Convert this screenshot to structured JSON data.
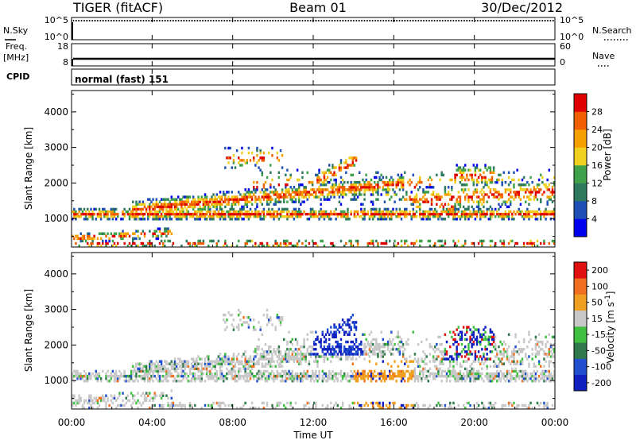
{
  "header": {
    "radar_title": "TIGER (fitACF)",
    "beam_title": "Beam 01",
    "date_title": "30/Dec/2012"
  },
  "top_panels": {
    "nsky_label": "N.Sky",
    "nsearch_label": "N.Search",
    "nsky_ticks": [
      "10^5",
      "10^0"
    ],
    "nsearch_ticks": [
      "10^5",
      "10^0"
    ],
    "freq_label_line1": "Freq.",
    "freq_label_line2": "[MHz]",
    "freq_ticks": [
      "18",
      "8"
    ],
    "nave_label": "Nave",
    "nave_ticks": [
      "60",
      "0"
    ],
    "cpid_label": "CPID",
    "cpid_text": "normal (fast) 151"
  },
  "chart_data": [
    {
      "type": "heatmap",
      "name": "power",
      "ylabel": "Slant Range [km]",
      "ylim": [
        200,
        4600
      ],
      "yticks": [
        "4000",
        "3000",
        "2000",
        "1000"
      ],
      "ytick_values": [
        4000,
        3000,
        2000,
        1000
      ],
      "colorbar_label": "Power [dB]",
      "colorbar_ticks": [
        "28",
        "24",
        "20",
        "16",
        "12",
        "8",
        "4"
      ],
      "colorbar_colors": [
        "#0000ee",
        "#1e4fb4",
        "#2f7a5e",
        "#3fa24a",
        "#f0d020",
        "#f5a000",
        "#f06000",
        "#e00000"
      ],
      "xlim": [
        0,
        24
      ]
    },
    {
      "type": "heatmap",
      "name": "velocity",
      "ylabel": "Slant Range [km]",
      "ylim": [
        200,
        4600
      ],
      "yticks": [
        "4000",
        "3000",
        "2000",
        "1000"
      ],
      "ytick_values": [
        4000,
        3000,
        2000,
        1000
      ],
      "colorbar_label": "Velocity [m s",
      "colorbar_label_sup": "-1",
      "colorbar_label_end": "]",
      "colorbar_ticks": [
        "200",
        "100",
        "50",
        "15",
        "-15",
        "-50",
        "-100",
        "-200"
      ],
      "colorbar_colors": [
        "#1020c0",
        "#2050d0",
        "#2f7a4a",
        "#40c040",
        "#c8c8c8",
        "#f0a020",
        "#f07020",
        "#e01010"
      ],
      "xlim": [
        0,
        24
      ]
    }
  ],
  "xaxis": {
    "label": "Time UT",
    "ticks": [
      "00:00",
      "04:00",
      "08:00",
      "12:00",
      "16:00",
      "20:00",
      "00:00"
    ],
    "tick_hours": [
      0,
      4,
      8,
      12,
      16,
      20,
      24
    ]
  }
}
